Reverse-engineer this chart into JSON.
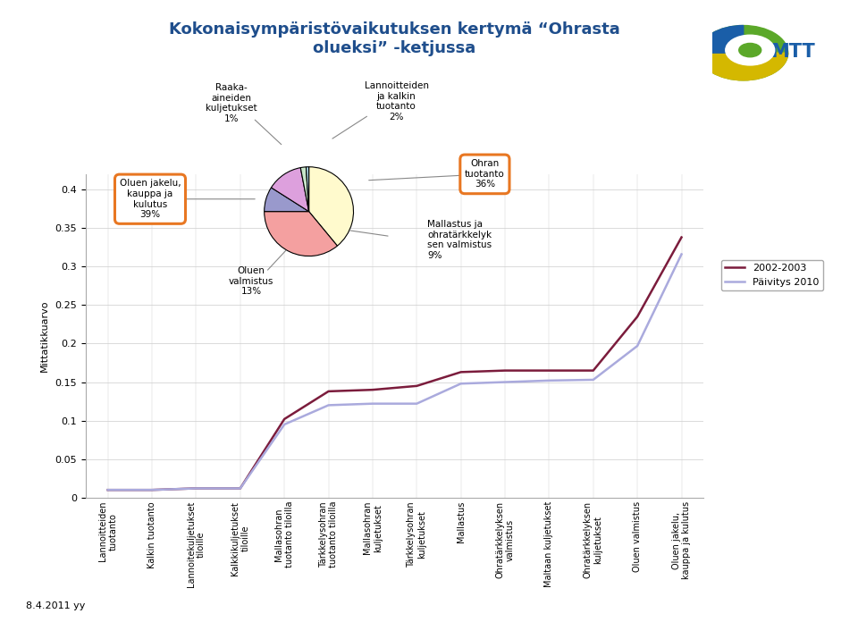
{
  "title_line1": "Kokonaisympäristövaikutuksen kertymä “Ohrasta",
  "title_line2": "olueksi” -ketjussa",
  "ylabel": "Mittatikkuarvo",
  "date_label": "8.4.2011 yy",
  "xlabels": [
    "Lannoitteiden\ntuotanto",
    "Kalkin tuotanto",
    "Lannoitekuljetukset\ntiloille",
    "Kalkkikuljetukset\ntiloille",
    "Mallasohran\ntuotanto tiloilla",
    "Tärkkelysohran\ntuotanto tiloilla",
    "Mallasohran\nkuljetukset",
    "Tärkkelysohran\nkuljetukset",
    "Mallastus",
    "Ohratärkkelyksen\nvalmistus",
    "Maltaan kuljetukset",
    "Ohratärkkelyksen\nkuljetukset",
    "Oluen valmistus",
    "Oluen jakelu,\nkauppa ja kulutus"
  ],
  "series_2002": [
    0.01,
    0.01,
    0.012,
    0.012,
    0.102,
    0.138,
    0.14,
    0.145,
    0.163,
    0.165,
    0.165,
    0.165,
    0.235,
    0.338
  ],
  "series_2010": [
    0.01,
    0.01,
    0.012,
    0.012,
    0.095,
    0.12,
    0.122,
    0.122,
    0.148,
    0.15,
    0.152,
    0.153,
    0.197,
    0.316
  ],
  "color_2002": "#7B1C3C",
  "color_2010": "#AAAADD",
  "legend_2002": "2002-2003",
  "legend_2010": "Päivitys 2010",
  "ylim": [
    0,
    0.42
  ],
  "yticks": [
    0,
    0.05,
    0.1,
    0.15,
    0.2,
    0.25,
    0.3,
    0.35,
    0.4
  ],
  "pie_sizes": [
    39,
    36,
    9,
    13,
    2,
    1
  ],
  "pie_colors": [
    "#FFFACD",
    "#F4A0A0",
    "#9999CC",
    "#DDA0DD",
    "#C8E6C9",
    "#ADD8E6"
  ],
  "bg_color": "#FFFFFF",
  "bottom_bar_color": "#CCCC33",
  "title_color": "#1F4E8C",
  "annot_ohran": "Ohran\ntuotanto\n36%",
  "annot_jakelu": "Oluen jakelu,\nkauppa ja\nkulutus\n39%",
  "annot_valmistus": "Oluen\nvalmistus\n13%",
  "annot_raaka": "Raaka-\naineiden\nkuljetukset\n1%",
  "annot_lanno": "Lannoitteiden\nja kalkin\ntuotanto\n2%",
  "annot_mallastus": "Mallastus ja\nohratärkkelyk\nsen valmistus\n9%"
}
